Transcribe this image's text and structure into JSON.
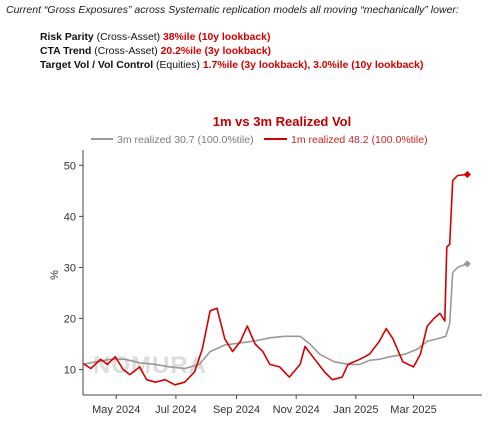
{
  "header": {
    "intro": "Current “Gross Exposures” across Systematic replication models all moving “mechanically” lower:",
    "rows": [
      {
        "name": "Risk Parity",
        "scope": " (Cross-Asset) ",
        "value": "38%ile (10y lookback)"
      },
      {
        "name": "CTA Trend",
        "scope": " (Cross-Asset) ",
        "value": "20.2%ile (3y lookback)"
      },
      {
        "name": "Target Vol / Vol Control",
        "scope": " (Equities) ",
        "value": "1.7%ile (3y lookback), 3.0%ile (10y lookback)"
      }
    ]
  },
  "watermark": "NOMURA",
  "colors": {
    "red": "#d40000",
    "gray": "#999999",
    "axis": "#444444"
  },
  "chart_data": {
    "type": "line",
    "title": "1m vs 3m Realized Vol",
    "xlabel": "",
    "ylabel": "%",
    "ylim": [
      5,
      53
    ],
    "yticks": [
      10,
      20,
      30,
      40,
      50
    ],
    "xticks": [
      {
        "label": "May 2024",
        "date": "2024-05-01"
      },
      {
        "label": "Jul 2024",
        "date": "2024-07-01"
      },
      {
        "label": "Sep 2024",
        "date": "2024-09-01"
      },
      {
        "label": "Nov 2024",
        "date": "2024-11-01"
      },
      {
        "label": "Jan 2025",
        "date": "2025-01-01"
      },
      {
        "label": "Mar 2025",
        "date": "2025-03-01"
      }
    ],
    "xlim": [
      "2024-03-28",
      "2025-05-10"
    ],
    "legend_position": "top",
    "series": [
      {
        "name": "3m realized 30.7 (100.0%tile)",
        "color": "#999999",
        "end_marker": true,
        "points": [
          [
            "2024-03-28",
            11.0
          ],
          [
            "2024-04-10",
            11.5
          ],
          [
            "2024-04-25",
            12.0
          ],
          [
            "2024-05-10",
            12.0
          ],
          [
            "2024-05-25",
            11.3
          ],
          [
            "2024-06-10",
            11.0
          ],
          [
            "2024-06-25",
            10.5
          ],
          [
            "2024-07-10",
            10.2
          ],
          [
            "2024-07-25",
            11.0
          ],
          [
            "2024-08-05",
            13.5
          ],
          [
            "2024-08-20",
            14.8
          ],
          [
            "2024-09-05",
            15.2
          ],
          [
            "2024-09-20",
            15.6
          ],
          [
            "2024-10-05",
            16.2
          ],
          [
            "2024-10-20",
            16.5
          ],
          [
            "2024-11-05",
            16.5
          ],
          [
            "2024-11-15",
            15.0
          ],
          [
            "2024-11-25",
            13.0
          ],
          [
            "2024-12-10",
            11.5
          ],
          [
            "2024-12-25",
            11.0
          ],
          [
            "2025-01-05",
            11.0
          ],
          [
            "2025-01-15",
            11.8
          ],
          [
            "2025-01-25",
            12.0
          ],
          [
            "2025-02-05",
            12.5
          ],
          [
            "2025-02-20",
            13.0
          ],
          [
            "2025-03-05",
            14.0
          ],
          [
            "2025-03-15",
            15.5
          ],
          [
            "2025-03-25",
            16.0
          ],
          [
            "2025-04-03",
            16.5
          ],
          [
            "2025-04-07",
            19.0
          ],
          [
            "2025-04-10",
            29.0
          ],
          [
            "2025-04-15",
            30.0
          ],
          [
            "2025-04-25",
            30.7
          ]
        ]
      },
      {
        "name": "1m realized 48.2 (100.0%tile)",
        "color": "#d40000",
        "end_marker": true,
        "points": [
          [
            "2024-03-28",
            11.2
          ],
          [
            "2024-04-05",
            10.2
          ],
          [
            "2024-04-15",
            12.0
          ],
          [
            "2024-04-22",
            11.0
          ],
          [
            "2024-04-30",
            12.5
          ],
          [
            "2024-05-08",
            10.0
          ],
          [
            "2024-05-15",
            9.0
          ],
          [
            "2024-05-25",
            10.5
          ],
          [
            "2024-06-01",
            8.0
          ],
          [
            "2024-06-10",
            7.5
          ],
          [
            "2024-06-20",
            8.0
          ],
          [
            "2024-06-30",
            7.0
          ],
          [
            "2024-07-10",
            7.5
          ],
          [
            "2024-07-20",
            9.5
          ],
          [
            "2024-07-28",
            14.0
          ],
          [
            "2024-08-05",
            21.5
          ],
          [
            "2024-08-12",
            22.0
          ],
          [
            "2024-08-20",
            16.0
          ],
          [
            "2024-08-28",
            13.5
          ],
          [
            "2024-09-05",
            15.5
          ],
          [
            "2024-09-12",
            18.5
          ],
          [
            "2024-09-20",
            15.0
          ],
          [
            "2024-09-28",
            13.5
          ],
          [
            "2024-10-05",
            11.0
          ],
          [
            "2024-10-15",
            10.5
          ],
          [
            "2024-10-25",
            8.5
          ],
          [
            "2024-11-05",
            11.0
          ],
          [
            "2024-11-10",
            14.5
          ],
          [
            "2024-11-20",
            12.0
          ],
          [
            "2024-11-30",
            9.5
          ],
          [
            "2024-12-08",
            8.0
          ],
          [
            "2024-12-18",
            8.5
          ],
          [
            "2024-12-24",
            11.0
          ],
          [
            "2025-01-05",
            12.0
          ],
          [
            "2025-01-15",
            13.0
          ],
          [
            "2025-01-25",
            15.5
          ],
          [
            "2025-02-01",
            18.0
          ],
          [
            "2025-02-08",
            16.0
          ],
          [
            "2025-02-18",
            11.5
          ],
          [
            "2025-03-01",
            10.5
          ],
          [
            "2025-03-08",
            13.0
          ],
          [
            "2025-03-15",
            18.5
          ],
          [
            "2025-03-22",
            20.0
          ],
          [
            "2025-03-28",
            21.0
          ],
          [
            "2025-04-02",
            19.5
          ],
          [
            "2025-04-04",
            34.0
          ],
          [
            "2025-04-07",
            34.5
          ],
          [
            "2025-04-10",
            47.0
          ],
          [
            "2025-04-15",
            48.0
          ],
          [
            "2025-04-25",
            48.2
          ]
        ]
      }
    ]
  }
}
